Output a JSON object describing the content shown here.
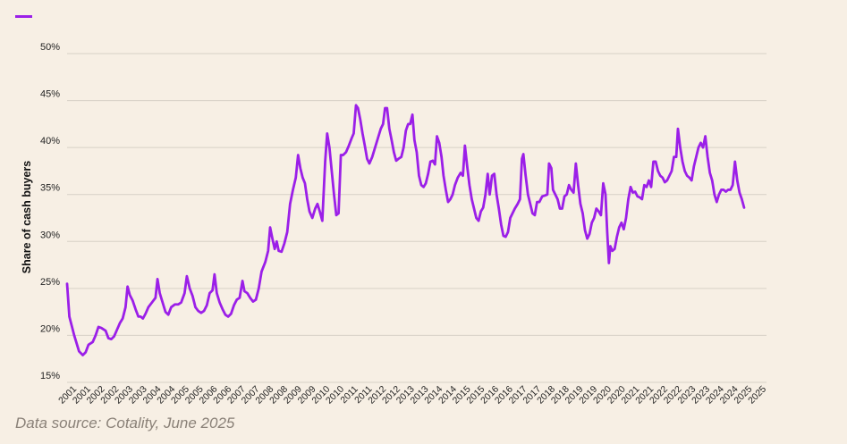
{
  "colors": {
    "background": "#f7efe4",
    "series": "#9b1fe8",
    "grid": "#d7d0c6"
  },
  "source": "Data source: Cotality, June 2025",
  "chart_data": {
    "type": "line",
    "title": "",
    "xlabel": "",
    "ylabel": "Share of cash buyers",
    "ylim": [
      15,
      50
    ],
    "yticks": [
      15,
      20,
      25,
      30,
      35,
      40,
      45,
      50
    ],
    "ytick_labels": [
      "15%",
      "20%",
      "25%",
      "30%",
      "35%",
      "40%",
      "45%",
      "50%"
    ],
    "xlim": [
      2001.0,
      2025.4
    ],
    "xtick_labels": [
      "2001",
      "2001",
      "2002",
      "2002",
      "2003",
      "2003",
      "2004",
      "2004",
      "2005",
      "2005",
      "2006",
      "2006",
      "2007",
      "2007",
      "2008",
      "2008",
      "2009",
      "2009",
      "2010",
      "2010",
      "2011",
      "2011",
      "2012",
      "2012",
      "2013",
      "2013",
      "2014",
      "2014",
      "2015",
      "2015",
      "2016",
      "2016",
      "2017",
      "2017",
      "2018",
      "2018",
      "2019",
      "2019",
      "2020",
      "2020",
      "2021",
      "2021",
      "2022",
      "2022",
      "2023",
      "2023",
      "2024",
      "2024",
      "2025",
      "2025"
    ],
    "grid": true,
    "legend": "top-left",
    "series": [
      {
        "points": [
          [
            2001.0,
            25.5
          ],
          [
            2001.08,
            22.0
          ],
          [
            2001.25,
            20.0
          ],
          [
            2001.42,
            18.3
          ],
          [
            2001.55,
            17.9
          ],
          [
            2001.65,
            18.2
          ],
          [
            2001.75,
            19.0
          ],
          [
            2001.9,
            19.3
          ],
          [
            2002.0,
            20.0
          ],
          [
            2002.1,
            20.9
          ],
          [
            2002.2,
            20.8
          ],
          [
            2002.35,
            20.5
          ],
          [
            2002.45,
            19.7
          ],
          [
            2002.55,
            19.6
          ],
          [
            2002.65,
            19.9
          ],
          [
            2002.75,
            20.6
          ],
          [
            2002.85,
            21.3
          ],
          [
            2002.95,
            21.8
          ],
          [
            2003.05,
            23.0
          ],
          [
            2003.12,
            25.2
          ],
          [
            2003.2,
            24.3
          ],
          [
            2003.3,
            23.7
          ],
          [
            2003.4,
            22.8
          ],
          [
            2003.5,
            22.0
          ],
          [
            2003.58,
            22.0
          ],
          [
            2003.66,
            21.8
          ],
          [
            2003.75,
            22.3
          ],
          [
            2003.85,
            23.0
          ],
          [
            2004.0,
            23.6
          ],
          [
            2004.1,
            24.0
          ],
          [
            2004.17,
            26.0
          ],
          [
            2004.25,
            24.5
          ],
          [
            2004.35,
            23.5
          ],
          [
            2004.45,
            22.5
          ],
          [
            2004.55,
            22.2
          ],
          [
            2004.65,
            23.0
          ],
          [
            2004.78,
            23.3
          ],
          [
            2004.9,
            23.3
          ],
          [
            2005.0,
            23.5
          ],
          [
            2005.12,
            24.5
          ],
          [
            2005.2,
            26.3
          ],
          [
            2005.3,
            25.0
          ],
          [
            2005.4,
            24.2
          ],
          [
            2005.5,
            23.0
          ],
          [
            2005.6,
            22.6
          ],
          [
            2005.7,
            22.4
          ],
          [
            2005.8,
            22.6
          ],
          [
            2005.9,
            23.2
          ],
          [
            2006.0,
            24.5
          ],
          [
            2006.1,
            24.8
          ],
          [
            2006.17,
            26.5
          ],
          [
            2006.25,
            24.5
          ],
          [
            2006.35,
            23.5
          ],
          [
            2006.45,
            22.8
          ],
          [
            2006.55,
            22.2
          ],
          [
            2006.65,
            22.0
          ],
          [
            2006.75,
            22.3
          ],
          [
            2006.85,
            23.2
          ],
          [
            2006.95,
            23.8
          ],
          [
            2007.05,
            24.0
          ],
          [
            2007.15,
            25.8
          ],
          [
            2007.22,
            24.7
          ],
          [
            2007.32,
            24.5
          ],
          [
            2007.42,
            24.0
          ],
          [
            2007.52,
            23.6
          ],
          [
            2007.62,
            23.8
          ],
          [
            2007.72,
            25.0
          ],
          [
            2007.82,
            26.8
          ],
          [
            2007.95,
            27.8
          ],
          [
            2008.05,
            29.0
          ],
          [
            2008.12,
            31.5
          ],
          [
            2008.2,
            30.3
          ],
          [
            2008.28,
            29.2
          ],
          [
            2008.35,
            30.0
          ],
          [
            2008.42,
            29.0
          ],
          [
            2008.52,
            28.9
          ],
          [
            2008.62,
            29.8
          ],
          [
            2008.72,
            31.0
          ],
          [
            2008.82,
            34.0
          ],
          [
            2008.92,
            35.5
          ],
          [
            2009.02,
            36.8
          ],
          [
            2009.1,
            39.2
          ],
          [
            2009.18,
            37.8
          ],
          [
            2009.26,
            36.8
          ],
          [
            2009.34,
            36.2
          ],
          [
            2009.42,
            34.5
          ],
          [
            2009.5,
            33.2
          ],
          [
            2009.6,
            32.5
          ],
          [
            2009.7,
            33.5
          ],
          [
            2009.78,
            34.0
          ],
          [
            2009.86,
            33.2
          ],
          [
            2009.95,
            32.2
          ],
          [
            2010.05,
            38.5
          ],
          [
            2010.12,
            41.5
          ],
          [
            2010.2,
            40.0
          ],
          [
            2010.28,
            37.5
          ],
          [
            2010.36,
            35.0
          ],
          [
            2010.44,
            32.8
          ],
          [
            2010.52,
            33.0
          ],
          [
            2010.6,
            39.2
          ],
          [
            2010.68,
            39.2
          ],
          [
            2010.78,
            39.5
          ],
          [
            2010.88,
            40.2
          ],
          [
            2010.98,
            41.0
          ],
          [
            2011.05,
            41.5
          ],
          [
            2011.13,
            44.5
          ],
          [
            2011.2,
            44.2
          ],
          [
            2011.28,
            43.0
          ],
          [
            2011.36,
            41.5
          ],
          [
            2011.44,
            40.2
          ],
          [
            2011.52,
            38.8
          ],
          [
            2011.6,
            38.3
          ],
          [
            2011.7,
            39.0
          ],
          [
            2011.8,
            40.0
          ],
          [
            2011.9,
            41.0
          ],
          [
            2012.0,
            42.0
          ],
          [
            2012.08,
            42.5
          ],
          [
            2012.15,
            44.2
          ],
          [
            2012.22,
            44.2
          ],
          [
            2012.3,
            42.0
          ],
          [
            2012.38,
            40.8
          ],
          [
            2012.46,
            39.5
          ],
          [
            2012.54,
            38.6
          ],
          [
            2012.62,
            38.8
          ],
          [
            2012.72,
            39.0
          ],
          [
            2012.8,
            40.0
          ],
          [
            2012.88,
            41.8
          ],
          [
            2012.96,
            42.5
          ],
          [
            2013.03,
            42.5
          ],
          [
            2013.11,
            43.5
          ],
          [
            2013.18,
            40.8
          ],
          [
            2013.26,
            39.5
          ],
          [
            2013.34,
            37.0
          ],
          [
            2013.42,
            36.0
          ],
          [
            2013.5,
            35.8
          ],
          [
            2013.58,
            36.2
          ],
          [
            2013.66,
            37.2
          ],
          [
            2013.74,
            38.5
          ],
          [
            2013.82,
            38.6
          ],
          [
            2013.9,
            38.2
          ],
          [
            2013.97,
            41.2
          ],
          [
            2014.05,
            40.5
          ],
          [
            2014.13,
            39.0
          ],
          [
            2014.2,
            37.0
          ],
          [
            2014.28,
            35.5
          ],
          [
            2014.36,
            34.2
          ],
          [
            2014.44,
            34.5
          ],
          [
            2014.52,
            35.0
          ],
          [
            2014.6,
            36.0
          ],
          [
            2014.7,
            36.8
          ],
          [
            2014.8,
            37.3
          ],
          [
            2014.88,
            37.0
          ],
          [
            2014.95,
            40.2
          ],
          [
            2015.03,
            38.0
          ],
          [
            2015.11,
            36.0
          ],
          [
            2015.19,
            34.5
          ],
          [
            2015.27,
            33.5
          ],
          [
            2015.35,
            32.5
          ],
          [
            2015.43,
            32.2
          ],
          [
            2015.51,
            33.2
          ],
          [
            2015.59,
            33.6
          ],
          [
            2015.67,
            35.0
          ],
          [
            2015.75,
            37.2
          ],
          [
            2015.82,
            35.0
          ],
          [
            2015.9,
            37.0
          ],
          [
            2015.98,
            37.2
          ],
          [
            2016.06,
            35.0
          ],
          [
            2016.14,
            33.5
          ],
          [
            2016.22,
            31.8
          ],
          [
            2016.3,
            30.6
          ],
          [
            2016.38,
            30.5
          ],
          [
            2016.46,
            31.0
          ],
          [
            2016.54,
            32.5
          ],
          [
            2016.62,
            33.0
          ],
          [
            2016.7,
            33.5
          ],
          [
            2016.8,
            34.0
          ],
          [
            2016.88,
            34.5
          ],
          [
            2016.95,
            38.8
          ],
          [
            2017.0,
            39.3
          ],
          [
            2017.08,
            37.0
          ],
          [
            2017.16,
            35.0
          ],
          [
            2017.24,
            34.0
          ],
          [
            2017.32,
            33.0
          ],
          [
            2017.4,
            32.8
          ],
          [
            2017.48,
            34.2
          ],
          [
            2017.56,
            34.2
          ],
          [
            2017.66,
            34.8
          ],
          [
            2017.76,
            34.9
          ],
          [
            2017.84,
            35.0
          ],
          [
            2017.9,
            38.3
          ],
          [
            2017.98,
            37.8
          ],
          [
            2018.04,
            35.5
          ],
          [
            2018.12,
            35.0
          ],
          [
            2018.2,
            34.5
          ],
          [
            2018.28,
            33.5
          ],
          [
            2018.36,
            33.5
          ],
          [
            2018.44,
            34.8
          ],
          [
            2018.52,
            35.0
          ],
          [
            2018.6,
            36.0
          ],
          [
            2018.68,
            35.5
          ],
          [
            2018.76,
            35.2
          ],
          [
            2018.84,
            38.3
          ],
          [
            2018.92,
            36.0
          ],
          [
            2019.0,
            34.0
          ],
          [
            2019.08,
            33.0
          ],
          [
            2019.16,
            31.2
          ],
          [
            2019.24,
            30.3
          ],
          [
            2019.32,
            30.8
          ],
          [
            2019.4,
            32.0
          ],
          [
            2019.48,
            32.5
          ],
          [
            2019.56,
            33.5
          ],
          [
            2019.64,
            33.2
          ],
          [
            2019.72,
            32.8
          ],
          [
            2019.8,
            36.2
          ],
          [
            2019.88,
            35.0
          ],
          [
            2019.94,
            31.0
          ],
          [
            2020.0,
            27.7
          ],
          [
            2020.05,
            29.5
          ],
          [
            2020.12,
            29.0
          ],
          [
            2020.2,
            29.2
          ],
          [
            2020.28,
            30.5
          ],
          [
            2020.36,
            31.5
          ],
          [
            2020.44,
            32.0
          ],
          [
            2020.52,
            31.3
          ],
          [
            2020.6,
            32.5
          ],
          [
            2020.68,
            34.5
          ],
          [
            2020.76,
            35.8
          ],
          [
            2020.84,
            35.2
          ],
          [
            2020.92,
            35.3
          ],
          [
            2021.0,
            34.8
          ],
          [
            2021.08,
            34.7
          ],
          [
            2021.16,
            34.5
          ],
          [
            2021.24,
            36.0
          ],
          [
            2021.32,
            35.8
          ],
          [
            2021.4,
            36.5
          ],
          [
            2021.48,
            35.8
          ],
          [
            2021.56,
            38.5
          ],
          [
            2021.64,
            38.5
          ],
          [
            2021.72,
            37.5
          ],
          [
            2021.8,
            37.0
          ],
          [
            2021.88,
            36.8
          ],
          [
            2021.96,
            36.3
          ],
          [
            2022.04,
            36.5
          ],
          [
            2022.12,
            37.0
          ],
          [
            2022.2,
            37.5
          ],
          [
            2022.28,
            39.0
          ],
          [
            2022.36,
            39.0
          ],
          [
            2022.42,
            42.0
          ],
          [
            2022.5,
            40.0
          ],
          [
            2022.58,
            38.5
          ],
          [
            2022.66,
            37.5
          ],
          [
            2022.74,
            37.0
          ],
          [
            2022.82,
            36.8
          ],
          [
            2022.9,
            36.5
          ],
          [
            2022.98,
            38.0
          ],
          [
            2023.06,
            39.0
          ],
          [
            2023.14,
            40.0
          ],
          [
            2023.22,
            40.5
          ],
          [
            2023.3,
            40.0
          ],
          [
            2023.38,
            41.2
          ],
          [
            2023.46,
            39.0
          ],
          [
            2023.54,
            37.3
          ],
          [
            2023.62,
            36.5
          ],
          [
            2023.7,
            35.0
          ],
          [
            2023.78,
            34.2
          ],
          [
            2023.86,
            35.0
          ],
          [
            2023.94,
            35.5
          ],
          [
            2024.02,
            35.5
          ],
          [
            2024.1,
            35.3
          ],
          [
            2024.18,
            35.5
          ],
          [
            2024.26,
            35.5
          ],
          [
            2024.34,
            36.0
          ],
          [
            2024.42,
            38.5
          ],
          [
            2024.5,
            36.5
          ],
          [
            2024.58,
            35.2
          ],
          [
            2024.66,
            34.5
          ],
          [
            2024.74,
            33.6
          ]
        ]
      }
    ]
  }
}
